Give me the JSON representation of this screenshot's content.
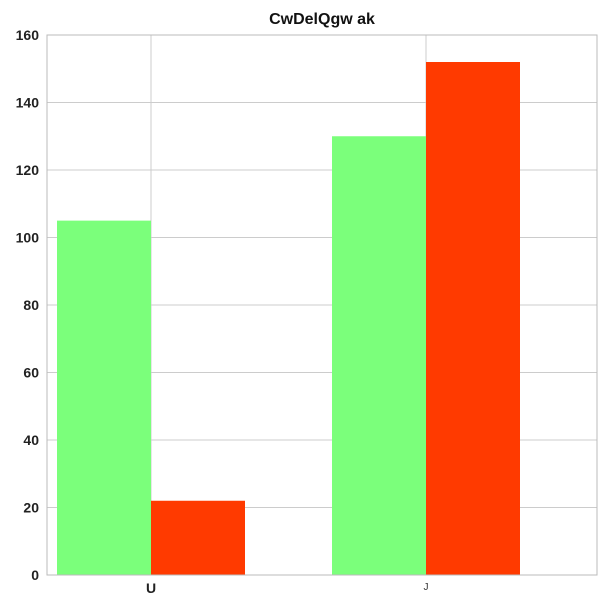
{
  "chart_data": {
    "type": "bar",
    "title": "CwDelQgw ak",
    "xlabel": "",
    "ylabel": "",
    "categories": [
      "U",
      "J"
    ],
    "series": [
      {
        "values": [
          105,
          130
        ],
        "color": "#7bff7b"
      },
      {
        "values": [
          22,
          152
        ],
        "color": "#ff3a00"
      }
    ],
    "ylim": [
      0,
      160
    ],
    "yticks": [
      0,
      20,
      40,
      60,
      80,
      100,
      120,
      140,
      160
    ],
    "grid": true
  }
}
